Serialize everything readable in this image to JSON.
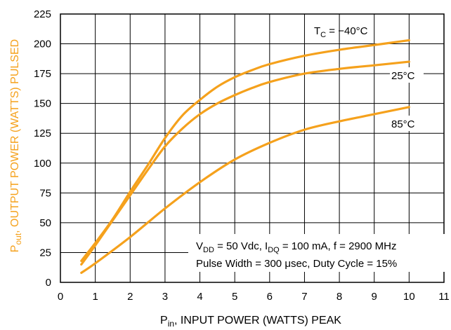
{
  "colors": {
    "curve": "#f5a11c",
    "ylabel": "#f5a11c",
    "grid": "#000000"
  },
  "chart_data": {
    "type": "line",
    "xlabel": {
      "main": "P",
      "sub": "in",
      "rest": ", INPUT POWER (WATTS) PEAK"
    },
    "ylabel": {
      "main": "P",
      "sub": "out",
      "rest": ", OUTPUT POWER (WATTS) PULSED"
    },
    "xlim": [
      0,
      11
    ],
    "ylim": [
      0,
      225
    ],
    "xticks": [
      0,
      1,
      2,
      3,
      4,
      5,
      6,
      7,
      8,
      9,
      10,
      11
    ],
    "yticks": [
      0,
      25,
      50,
      75,
      100,
      125,
      150,
      175,
      200,
      225
    ],
    "grid": true,
    "series": [
      {
        "name": "T_C = −40°C",
        "label": {
          "pre": "T",
          "sub": "C",
          "post": " = −40°C"
        },
        "x": [
          0.6,
          1,
          1.5,
          2,
          2.5,
          3,
          3.5,
          4,
          4.5,
          5,
          5.5,
          6,
          7,
          8,
          9,
          10
        ],
        "y": [
          18,
          33,
          53,
          76,
          98,
          121,
          140,
          153,
          164,
          172,
          178,
          183,
          190,
          195,
          199,
          203
        ]
      },
      {
        "name": "25°C",
        "label": {
          "pre": "25°C",
          "sub": "",
          "post": ""
        },
        "x": [
          0.6,
          1,
          1.5,
          2,
          2.5,
          3,
          3.5,
          4,
          4.5,
          5,
          5.5,
          6,
          7,
          8,
          9,
          10
        ],
        "y": [
          15,
          31,
          52,
          73,
          94,
          114,
          129,
          141,
          150,
          157,
          163,
          168,
          175,
          179,
          182,
          185
        ]
      },
      {
        "name": "85°C",
        "label": {
          "pre": "85°C",
          "sub": "",
          "post": ""
        },
        "x": [
          0.6,
          1,
          2,
          3,
          4,
          5,
          6,
          7,
          8,
          9,
          10
        ],
        "y": [
          8,
          16,
          38,
          62,
          84,
          103,
          117,
          128,
          135,
          141,
          147
        ]
      }
    ],
    "conditions": {
      "line1": [
        {
          "t": "V"
        },
        {
          "t": "DD",
          "sub": true
        },
        {
          "t": " = 50 Vdc, I"
        },
        {
          "t": "DQ",
          "sub": true
        },
        {
          "t": " = 100 mA, f = 2900 MHz"
        }
      ],
      "line2": "Pulse Width = 300 μsec, Duty Cycle = 15%"
    }
  }
}
